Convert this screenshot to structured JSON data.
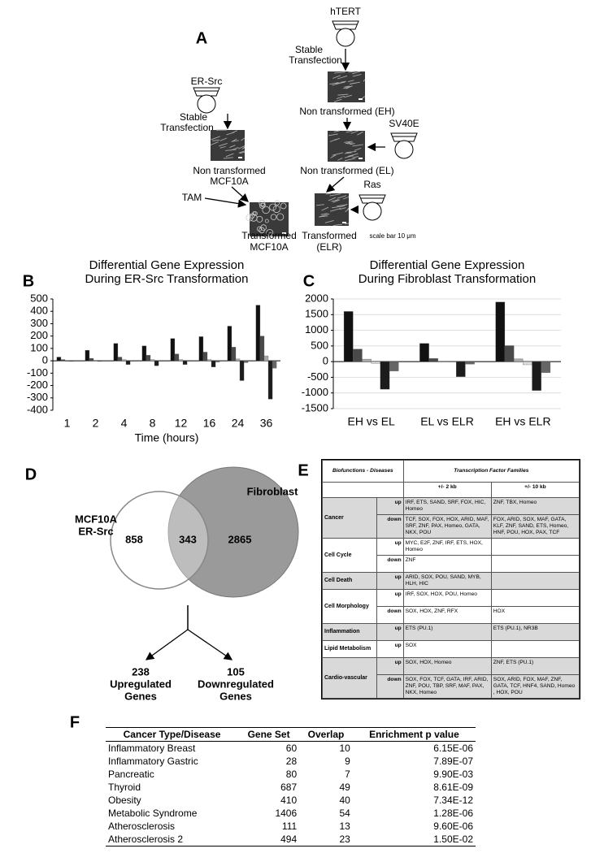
{
  "panel_a": {
    "label": "A",
    "htert": "hTERT",
    "stable_1": [
      "Stable",
      "Transfection"
    ],
    "eh": "Non transformed (EH)",
    "sv40e": "SV40E",
    "el": "Non transformed (EL)",
    "ras": "Ras",
    "elr": [
      "Transformed",
      "(ELR)"
    ],
    "scale": "scale bar 10 μm",
    "ersrc": "ER-Src",
    "stable_2": [
      "Stable",
      "Transfection"
    ],
    "mcf_non": [
      "Non transformed",
      "MCF10A"
    ],
    "tam": "TAM",
    "mcf_trans": [
      "Transformed",
      "MCF10A"
    ]
  },
  "chart_data": [
    {
      "type": "bar",
      "panel_label": "B",
      "title": [
        "Differential Gene Expression",
        "During ER-Src Transformation"
      ],
      "x_label": "Time (hours)",
      "categories": [
        "1",
        "2",
        "4",
        "8",
        "12",
        "16",
        "24",
        "36"
      ],
      "series": [
        {
          "color": "#111111",
          "values": [
            30,
            85,
            140,
            120,
            180,
            195,
            280,
            450
          ]
        },
        {
          "color": "#4a4a4a",
          "values": [
            10,
            20,
            30,
            45,
            55,
            70,
            110,
            200
          ]
        },
        {
          "color": "#a8a8a8",
          "values": [
            0,
            5,
            10,
            10,
            10,
            10,
            15,
            40
          ]
        },
        {
          "color": "#1c1c1c",
          "values": [
            -5,
            -5,
            -30,
            -40,
            -30,
            -50,
            -160,
            -310
          ]
        },
        {
          "color": "#666666",
          "values": [
            0,
            0,
            -5,
            -5,
            -5,
            -10,
            -15,
            -60
          ]
        }
      ],
      "ylim": [
        -400,
        500
      ],
      "yticks": [
        -400,
        -300,
        -200,
        -100,
        0,
        100,
        200,
        300,
        400,
        500
      ],
      "grid": false
    },
    {
      "type": "bar",
      "panel_label": "C",
      "title": [
        "Differential Gene Expression",
        "During Fibroblast Transformation"
      ],
      "categories": [
        "EH vs EL",
        "EL vs ELR",
        "EH vs ELR"
      ],
      "series": [
        {
          "color": "#111111",
          "values": [
            1600,
            580,
            1900
          ]
        },
        {
          "color": "#4a4a4a",
          "values": [
            400,
            100,
            510
          ]
        },
        {
          "color": "#a8a8a8",
          "values": [
            80,
            20,
            90
          ]
        },
        {
          "color": "#dddddd",
          "values": [
            -60,
            -10,
            -100
          ]
        },
        {
          "color": "#1c1c1c",
          "values": [
            -880,
            -480,
            -920
          ]
        },
        {
          "color": "#666666",
          "values": [
            -300,
            -80,
            -350
          ]
        }
      ],
      "ylim": [
        -1500,
        2000
      ],
      "yticks": [
        -1500,
        -1000,
        -500,
        0,
        500,
        1000,
        1500,
        2000
      ],
      "grid": true
    }
  ],
  "panel_d": {
    "label": "D",
    "left_set": [
      "MCF10A",
      "ER-Src"
    ],
    "right_set": "Fibroblast",
    "left_only": "858",
    "overlap": "343",
    "right_only": "2865",
    "up": [
      "238",
      "Upregulated",
      "Genes"
    ],
    "down": [
      "105",
      "Downregulated",
      "Genes"
    ]
  },
  "panel_e": {
    "label": "E",
    "header": [
      "Biofunctions - Diseases",
      "Transcription Factor Families"
    ],
    "subheader": [
      "+/- 2 kb",
      "+/- 10 kb"
    ],
    "groups": [
      {
        "name": "Cancer",
        "shaded": true,
        "rows": [
          {
            "dir": "up",
            "kb2": "IRF, ETS, SAND, SRF, FOX, HIC, Homeo",
            "kb10": "ZNF, TBX, Homeo"
          },
          {
            "dir": "down",
            "kb2": "TCF, SOX, FOX, HOX, ARID, MAF, SRF, ZNF, PAX, Homeo, GATA, NKX, POU",
            "kb10": "FOX, ARID, SOX, MAF, GATA, KLF, ZNF, SAND, ETS, Homeo, HNF, POU, HOX, PAX, TCF"
          }
        ]
      },
      {
        "name": "Cell Cycle",
        "shaded": false,
        "rows": [
          {
            "dir": "up",
            "kb2": "MYC, E2F, ZNF, IRF, ETS, HOX, Homeo"
          },
          {
            "dir": "down",
            "kb2": "ZNF"
          }
        ]
      },
      {
        "name": "Cell Death",
        "shaded": true,
        "rows": [
          {
            "dir": "up",
            "kb2": "ARID, SOX, POU, SAND, MYB, HLH, HIC"
          }
        ]
      },
      {
        "name": "Cell Morphology",
        "shaded": false,
        "rows": [
          {
            "dir": "up",
            "kb2": "IRF, SOX, HOX, POU, Homeo"
          },
          {
            "dir": "down",
            "kb2": "SOX, HOX, ZNF, RFX",
            "kb10": "HOX"
          }
        ]
      },
      {
        "name": "Inflammation",
        "shaded": true,
        "rows": [
          {
            "dir": "up",
            "kb2": "ETS  (PU.1)",
            "kb10": "ETS (PU.1),  NR3B"
          }
        ]
      },
      {
        "name": "Lipid Metabolism",
        "shaded": false,
        "rows": [
          {
            "dir": "up",
            "kb2": "SOX"
          }
        ]
      },
      {
        "name": "Cardio-vascular",
        "shaded": true,
        "rows": [
          {
            "dir": "up",
            "kb2": "SOX, HOX, Homeo",
            "kb10": "ZNF, ETS (PU.1)"
          },
          {
            "dir": "down",
            "kb2": "SOX, FOX, TCF, GATA, IRF, ARID, ZNF, POU, TBP, SRF, MAF, PAX, NKX, Homeo",
            "kb10": "SOX, ARID, FOX, MAF, ZNF, GATA, TCF, HNF4, SAND, Homeo , HOX, POU"
          }
        ]
      }
    ]
  },
  "panel_f": {
    "label": "F",
    "columns": [
      "Cancer Type/Disease",
      "Gene Set",
      "Overlap",
      "Enrichment p value"
    ],
    "rows": [
      [
        "Inflammatory Breast",
        60,
        10,
        "6.15E-06"
      ],
      [
        "Inflammatory Gastric",
        28,
        9,
        "7.89E-07"
      ],
      [
        "Pancreatic",
        80,
        7,
        "9.90E-03"
      ],
      [
        "Thyroid",
        687,
        49,
        "8.61E-09"
      ],
      [
        "Obesity",
        410,
        40,
        "7.34E-12"
      ],
      [
        "Metabolic Syndrome",
        1406,
        54,
        "1.28E-06"
      ],
      [
        "Atherosclerosis",
        111,
        13,
        "9.60E-06"
      ],
      [
        "Atherosclerosis 2",
        494,
        23,
        "1.50E-02"
      ]
    ]
  }
}
